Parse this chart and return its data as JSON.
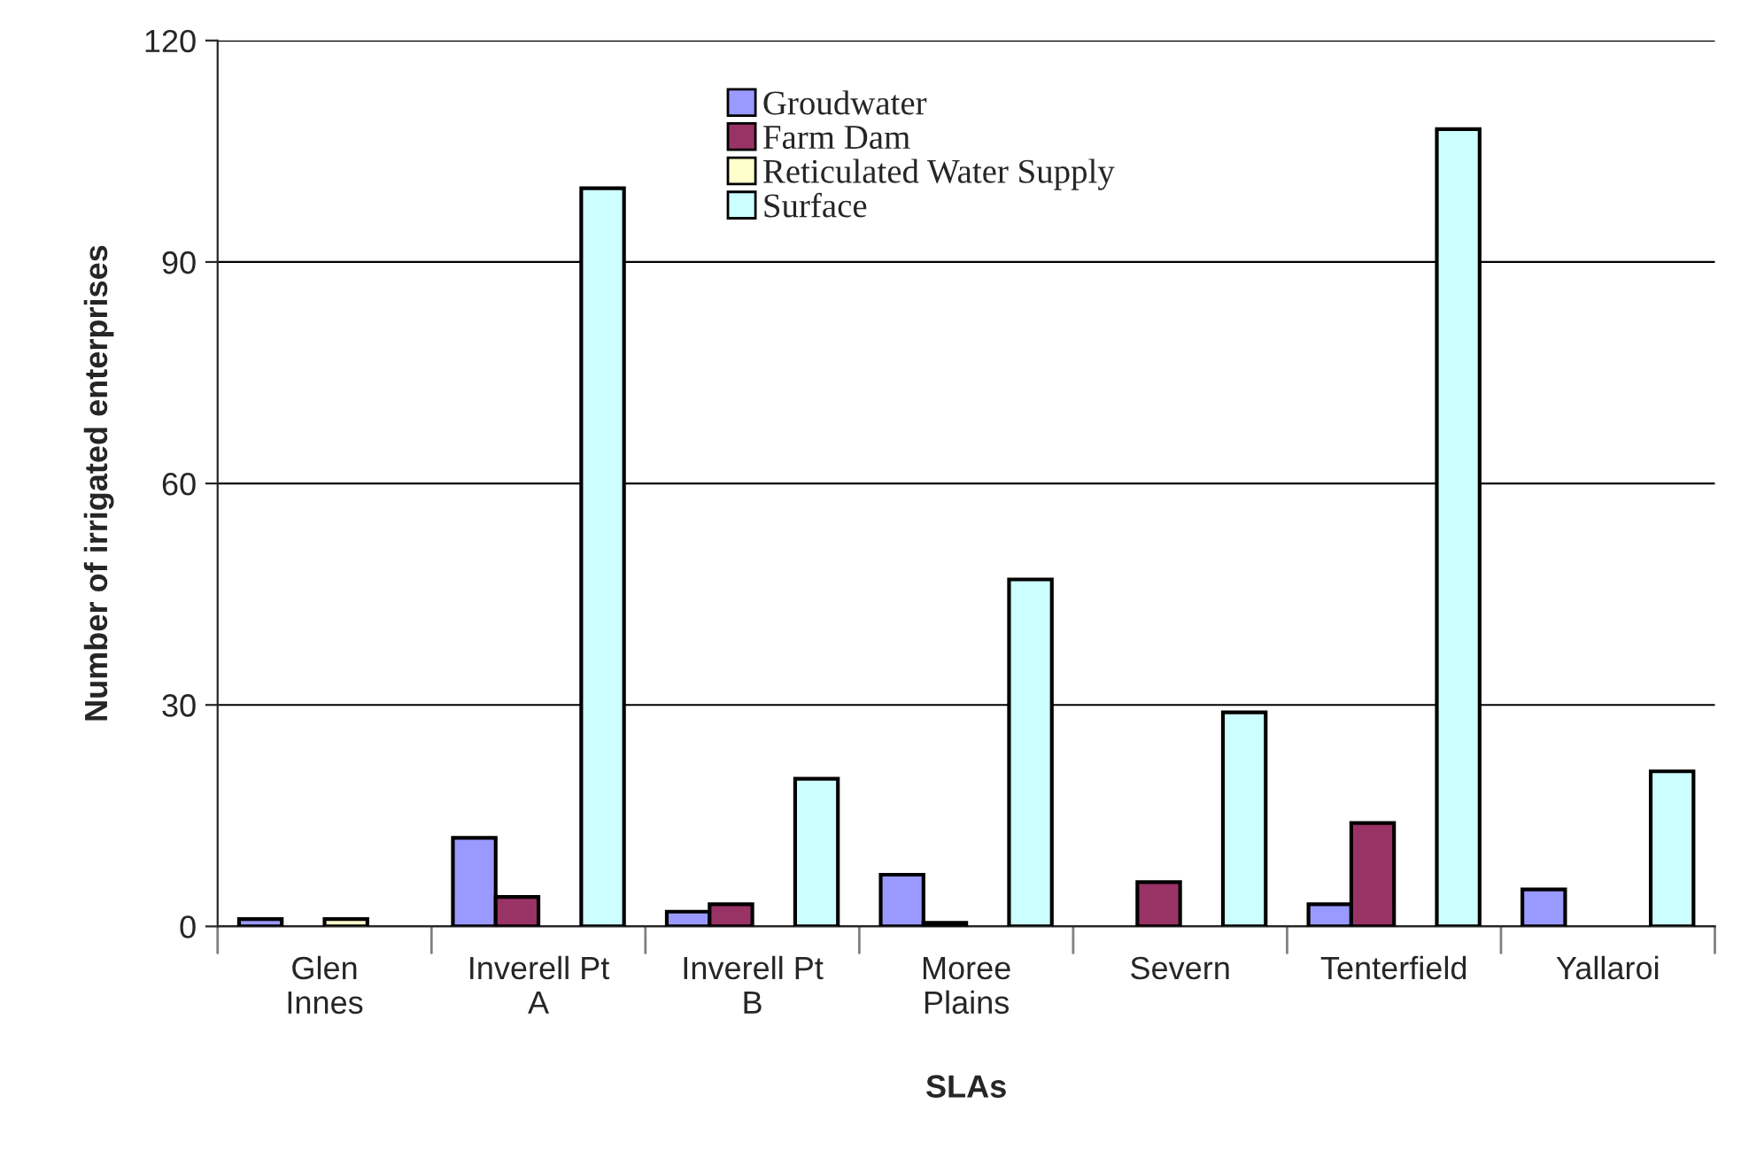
{
  "chart_data": {
    "type": "bar",
    "xlabel": "SLAs",
    "ylabel": "Number of irrigated enterprises",
    "categories": [
      "Glen\nInnes",
      "Inverell Pt\nA",
      "Inverell Pt\nB",
      "Moree\nPlains",
      "Severn",
      "Tenterfield",
      "Yallaroi"
    ],
    "series": [
      {
        "name": "Groudwater",
        "color": "#9999ff",
        "values": [
          1,
          12,
          2,
          7,
          null,
          3,
          5
        ]
      },
      {
        "name": "Farm Dam",
        "color": "#993366",
        "values": [
          null,
          4,
          3,
          0.5,
          6,
          14,
          null
        ]
      },
      {
        "name": "Reticulated Water Supply",
        "color": "#ffffcc",
        "values": [
          1,
          null,
          null,
          null,
          null,
          null,
          null
        ]
      },
      {
        "name": "Surface",
        "color": "#ccffff",
        "values": [
          null,
          100,
          20,
          47,
          29,
          108,
          21
        ]
      }
    ],
    "ylim": [
      0,
      120
    ],
    "yticks": [
      0,
      30,
      60,
      90,
      120
    ],
    "grid": "y",
    "legend": "top"
  }
}
